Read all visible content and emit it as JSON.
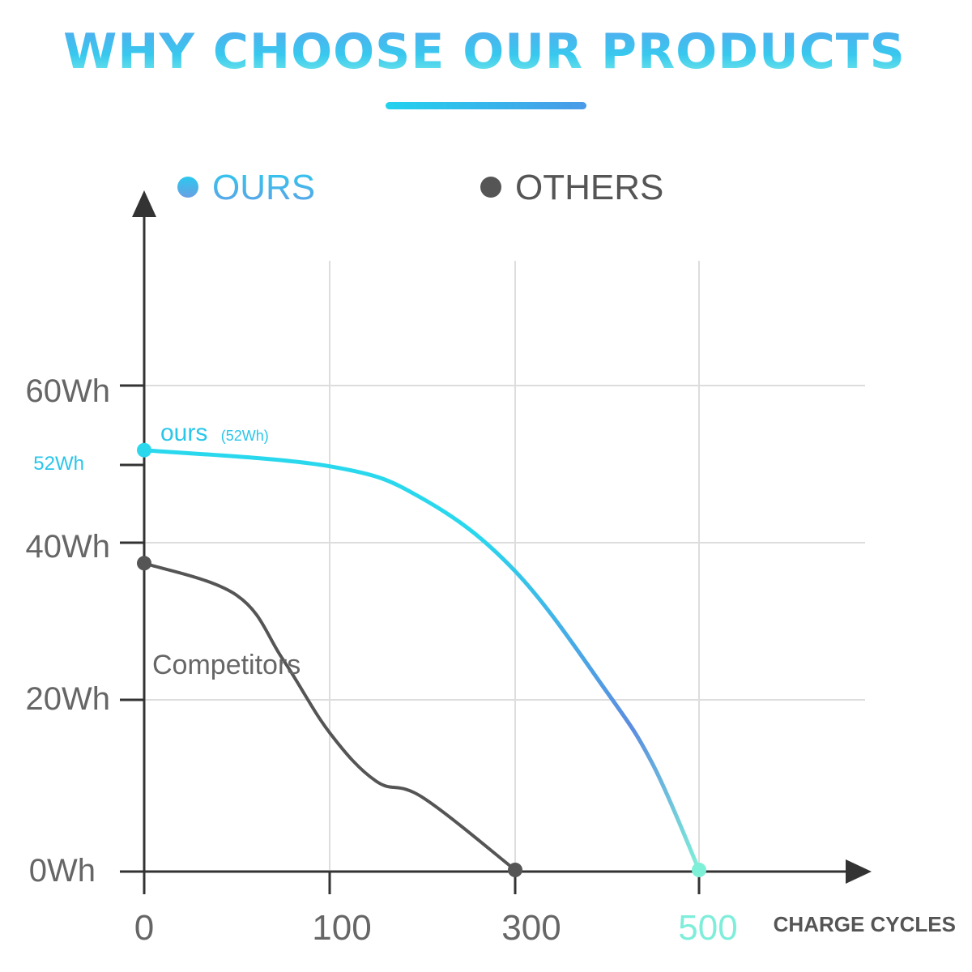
{
  "header": {
    "title": "WHY CHOOSE OUR PRODUCTS"
  },
  "legend": [
    {
      "label": "OURS",
      "color": "#29c6ea"
    },
    {
      "label": "OTHERS",
      "color": "#555555"
    }
  ],
  "colors": {
    "ours_start": "#2ad8ee",
    "ours_mid": "#5b8ce0",
    "ours_end": "#7ff0d8",
    "others": "#555555",
    "axis": "#333333",
    "grid": "#dddddd",
    "ticks": "#666666"
  },
  "chart_data": {
    "type": "line",
    "title": "WHY CHOOSE OUR PRODUCTS",
    "xlabel": "CHARGE CYCLES",
    "ylabel": "",
    "x_ticks": [
      "0",
      "100",
      "300",
      "500"
    ],
    "y_ticks": [
      "0Wh",
      "20Wh",
      "40Wh",
      "60Wh"
    ],
    "highlight_y_tick": "52Wh",
    "xlim": [
      0,
      500
    ],
    "ylim": [
      0,
      60
    ],
    "grid": true,
    "legend_position": "top",
    "series": [
      {
        "name": "OURS",
        "annotation": "ours",
        "annotation_sub": "(52Wh)",
        "x": [
          0,
          100,
          200,
          300,
          400,
          450,
          500
        ],
        "y": [
          52,
          50,
          46,
          37,
          22,
          13,
          0
        ]
      },
      {
        "name": "OTHERS",
        "annotation": "Competitors",
        "x": [
          0,
          50,
          75,
          100,
          150,
          200,
          300
        ],
        "y": [
          38,
          34,
          26,
          17,
          11,
          9,
          0
        ]
      }
    ]
  }
}
